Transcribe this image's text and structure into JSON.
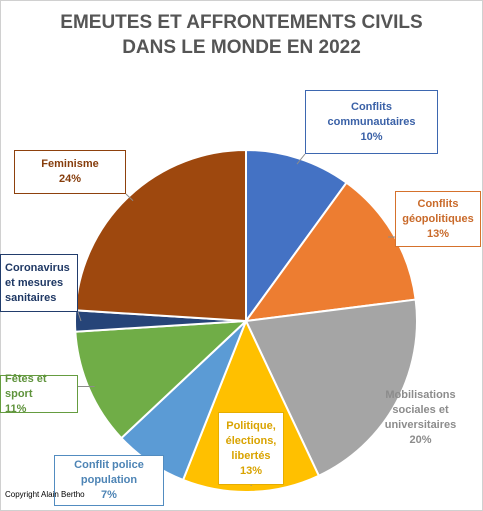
{
  "chart_data": {
    "type": "pie",
    "title": [
      "EMEUTES ET AFFRONTEMENTS CIVILS",
      "DANS LE MONDE EN 2022"
    ],
    "start_angle_deg": 0,
    "direction": "clockwise",
    "slices": [
      {
        "label": [
          "Conflits",
          "communautaires"
        ],
        "pct": "10%",
        "value": 10,
        "color": "#4472C4"
      },
      {
        "label": [
          "Conflits",
          "géopolitiques"
        ],
        "pct": "13%",
        "value": 13,
        "color": "#ED7D31"
      },
      {
        "label": [
          "Mobilisations",
          "sociales et",
          "universitaires"
        ],
        "pct": "20%",
        "value": 20,
        "color": "#A5A5A5"
      },
      {
        "label": [
          "Politique,",
          "élections,",
          "libertés"
        ],
        "pct": "13%",
        "value": 13,
        "color": "#FFC000"
      },
      {
        "label": [
          "Conflit police",
          "population"
        ],
        "pct": "7%",
        "value": 7,
        "color": "#5B9BD5"
      },
      {
        "label": [
          "Fêtes et sport"
        ],
        "pct": "11%",
        "value": 11,
        "color": "#70AD47"
      },
      {
        "label": [
          "Coronavirus",
          "et mesures",
          "sanitaires"
        ],
        "pct": "",
        "value": 2,
        "color": "#264478"
      },
      {
        "label": [
          "Feminisme"
        ],
        "pct": "24%",
        "value": 24,
        "color": "#9E480E"
      }
    ]
  },
  "copyright": "Copyright Alain Bertho"
}
